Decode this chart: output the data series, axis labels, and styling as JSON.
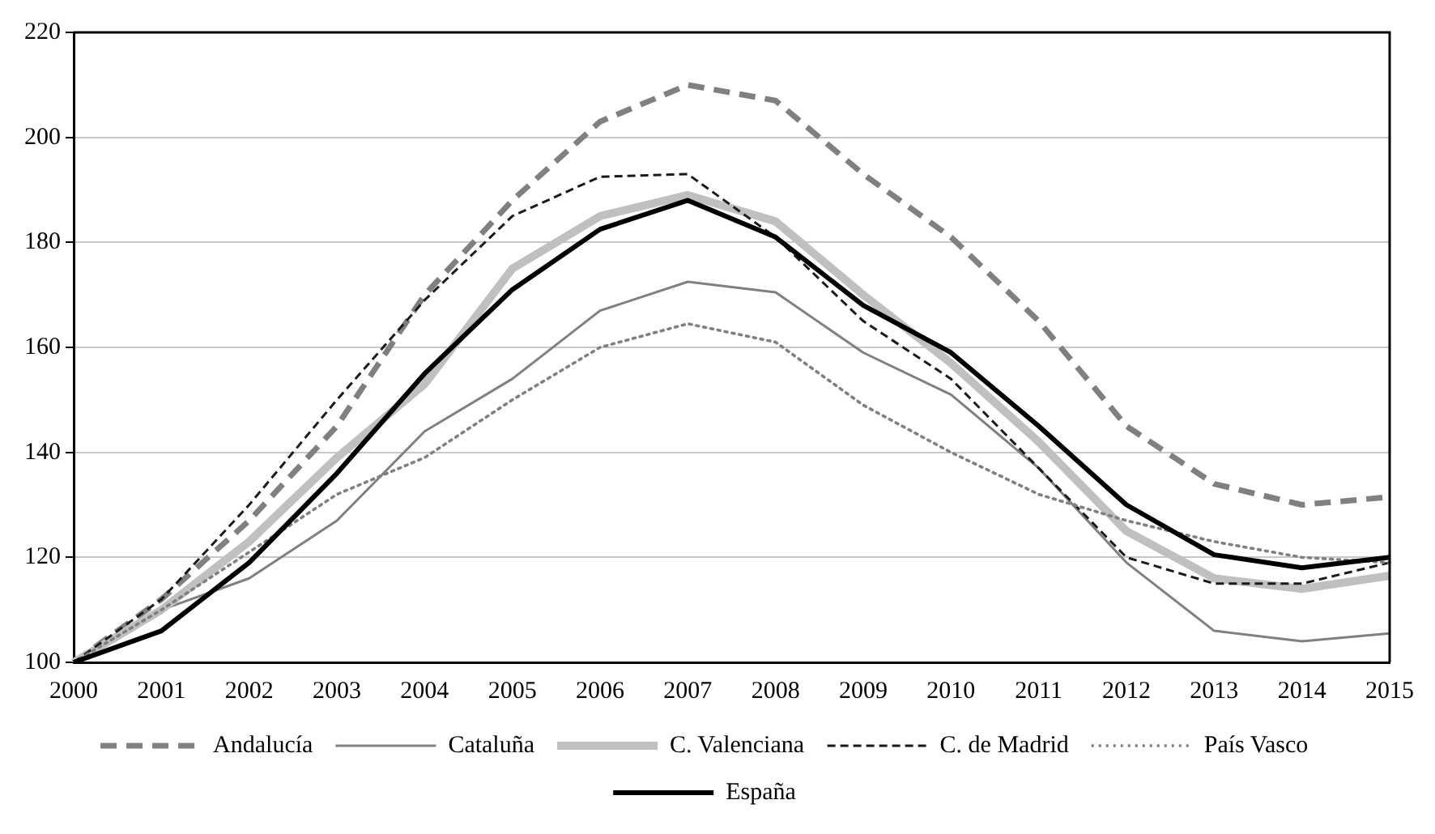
{
  "chart_data": {
    "type": "line",
    "categories": [
      "2000",
      "2001",
      "2002",
      "2003",
      "2004",
      "2005",
      "2006",
      "2007",
      "2008",
      "2009",
      "2010",
      "2011",
      "2012",
      "2013",
      "2014",
      "2015"
    ],
    "ylim": [
      100,
      220
    ],
    "yticks": [
      100,
      120,
      140,
      160,
      180,
      200,
      220
    ],
    "grid": "y",
    "legend": "bottom",
    "marker": "none",
    "series": [
      {
        "name": "Andalucía",
        "color": "#808080",
        "line_style": "dashed",
        "values": [
          100,
          112,
          127,
          145,
          170,
          188,
          203,
          210,
          207,
          193,
          181,
          165,
          145,
          134,
          130,
          131.5
        ]
      },
      {
        "name": "Cataluña",
        "color": "#808080",
        "line_style": "solid",
        "values": [
          100,
          110,
          116,
          127,
          144,
          154,
          167,
          172.5,
          170.5,
          159,
          151,
          137,
          119,
          106,
          104,
          105.5
        ]
      },
      {
        "name": "C. Valenciana",
        "color": "#c0c0c0",
        "line_style": "solid",
        "values": [
          100,
          110,
          123,
          139,
          153,
          175,
          185,
          189,
          184,
          170,
          157,
          142,
          125,
          116,
          114,
          116.5
        ]
      },
      {
        "name": "C. de Madrid",
        "color": "#1a1a1a",
        "line_style": "dashed",
        "values": [
          100,
          112,
          130,
          150,
          169,
          185,
          192.5,
          193,
          181,
          165,
          154,
          137,
          120,
          115,
          115,
          119
        ]
      },
      {
        "name": "País Vasco",
        "color": "#808080",
        "line_style": "dotted",
        "values": [
          100,
          110,
          121,
          132,
          139,
          150,
          160,
          164.5,
          161,
          149,
          140,
          132,
          127,
          123,
          120,
          119
        ]
      },
      {
        "name": "España",
        "color": "#000000",
        "line_style": "solid",
        "values": [
          100,
          106,
          119,
          136,
          155,
          171,
          182.5,
          188,
          181,
          168,
          159,
          145,
          130,
          120.5,
          118,
          120
        ]
      }
    ]
  }
}
